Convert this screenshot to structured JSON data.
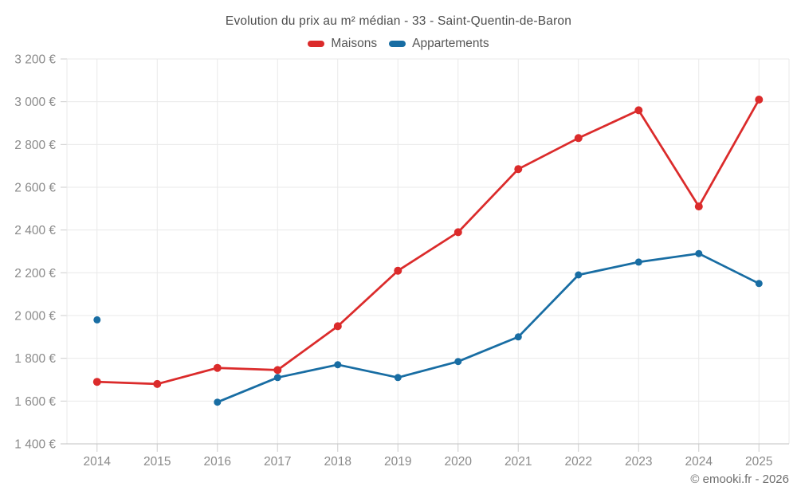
{
  "chart_data": {
    "type": "line",
    "title": "Evolution du prix au m² médian - 33 - Saint-Quentin-de-Baron",
    "xlabel": "",
    "ylabel": "",
    "categories": [
      "2014",
      "2015",
      "2016",
      "2017",
      "2018",
      "2019",
      "2020",
      "2021",
      "2022",
      "2023",
      "2024",
      "2025"
    ],
    "series": [
      {
        "name": "Maisons",
        "color": "#db2b2b",
        "marker_radius": 5,
        "values": [
          1690,
          1680,
          1755,
          1745,
          1950,
          2210,
          2390,
          2685,
          2830,
          2960,
          2510,
          3010
        ]
      },
      {
        "name": "Appartements",
        "color": "#186da3",
        "marker_radius": 4.5,
        "values": [
          1980,
          null,
          1595,
          1710,
          1770,
          1710,
          1785,
          1900,
          2190,
          2250,
          2290,
          2150
        ]
      }
    ],
    "ylim": [
      1400,
      3200
    ],
    "ytick_step": 200,
    "y_tick_labels": [
      "1 400 €",
      "1 600 €",
      "1 800 €",
      "2 000 €",
      "2 200 €",
      "2 400 €",
      "2 600 €",
      "2 800 €",
      "3 000 €",
      "3 200 €"
    ],
    "grid": true,
    "legend_position": "top",
    "currency_suffix": "€",
    "footer": "© emooki.fr - 2026"
  },
  "colors": {
    "grid_line": "#e9e9e9",
    "tick_line": "#cdcdcd",
    "axis_line": "#c2c2c2",
    "tick_label": "#8a8a8a",
    "title_text": "#4d4d4d",
    "legend_text": "#565656",
    "footer_text": "#6e6e6e"
  }
}
